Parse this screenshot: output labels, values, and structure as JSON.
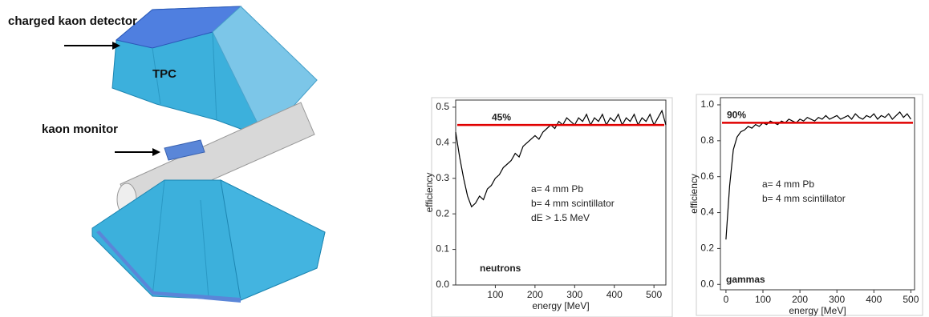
{
  "diagram": {
    "labels": [
      "charged kaon detector",
      "TPC",
      "kaon monitor"
    ]
  },
  "chart_data": [
    {
      "type": "line",
      "xlabel": "energy [MeV]",
      "ylabel": "efficiency",
      "xlim": [
        0,
        530
      ],
      "ylim": [
        0,
        0.52
      ],
      "xticks": [
        100,
        200,
        300,
        400,
        500
      ],
      "yticks": [
        {
          "value": 0,
          "label": "0.0"
        },
        0.1,
        0.2,
        0.3,
        0.4,
        0.5
      ],
      "reference": {
        "value": 0.45,
        "label": "45%",
        "color": "#e00000"
      },
      "annotations": [
        "a= 4 mm Pb",
        "b= 4 mm scintillator",
        "dE > 1.5 MeV",
        "neutrons"
      ],
      "series": [
        {
          "color": "#000000",
          "x": [
            0,
            10,
            20,
            30,
            40,
            50,
            60,
            70,
            80,
            90,
            100,
            110,
            120,
            130,
            140,
            150,
            160,
            170,
            180,
            190,
            200,
            210,
            220,
            230,
            240,
            250,
            260,
            270,
            280,
            290,
            300,
            310,
            320,
            330,
            340,
            350,
            360,
            370,
            380,
            390,
            400,
            410,
            420,
            430,
            440,
            450,
            460,
            470,
            480,
            490,
            500,
            510,
            520,
            530
          ],
          "values": [
            0.43,
            0.36,
            0.3,
            0.25,
            0.22,
            0.23,
            0.25,
            0.24,
            0.27,
            0.28,
            0.3,
            0.31,
            0.33,
            0.34,
            0.35,
            0.37,
            0.36,
            0.39,
            0.4,
            0.41,
            0.42,
            0.41,
            0.43,
            0.44,
            0.45,
            0.44,
            0.46,
            0.45,
            0.47,
            0.46,
            0.45,
            0.47,
            0.46,
            0.48,
            0.45,
            0.47,
            0.46,
            0.48,
            0.45,
            0.47,
            0.46,
            0.48,
            0.45,
            0.47,
            0.46,
            0.48,
            0.45,
            0.47,
            0.46,
            0.48,
            0.45,
            0.47,
            0.49,
            0.45
          ]
        }
      ]
    },
    {
      "type": "line",
      "xlabel": "energy [MeV]",
      "ylabel": "efficiency",
      "xlim": [
        -15,
        510
      ],
      "ylim": [
        -0.03,
        1.04
      ],
      "xticks": [
        0,
        100,
        200,
        300,
        400,
        500
      ],
      "yticks": [
        {
          "value": 0,
          "label": "0.0"
        },
        0.2,
        0.4,
        0.6,
        0.8,
        {
          "value": 1,
          "label": "1.0"
        }
      ],
      "reference": {
        "value": 0.9,
        "label": "90%",
        "color": "#e00000"
      },
      "annotations": [
        "a= 4 mm Pb",
        "b= 4 mm scintillator",
        "gammas"
      ],
      "series": [
        {
          "color": "#000000",
          "x": [
            0,
            10,
            20,
            30,
            40,
            50,
            60,
            70,
            80,
            90,
            100,
            110,
            120,
            130,
            140,
            150,
            160,
            170,
            180,
            190,
            200,
            210,
            220,
            230,
            240,
            250,
            260,
            270,
            280,
            290,
            300,
            310,
            320,
            330,
            340,
            350,
            360,
            370,
            380,
            390,
            400,
            410,
            420,
            430,
            440,
            450,
            460,
            470,
            480,
            490,
            500
          ],
          "values": [
            0.25,
            0.55,
            0.75,
            0.82,
            0.85,
            0.86,
            0.88,
            0.87,
            0.89,
            0.88,
            0.9,
            0.89,
            0.91,
            0.9,
            0.89,
            0.91,
            0.9,
            0.92,
            0.91,
            0.9,
            0.92,
            0.91,
            0.93,
            0.92,
            0.91,
            0.93,
            0.92,
            0.94,
            0.92,
            0.93,
            0.94,
            0.92,
            0.93,
            0.94,
            0.92,
            0.95,
            0.93,
            0.92,
            0.94,
            0.93,
            0.95,
            0.92,
            0.94,
            0.93,
            0.95,
            0.92,
            0.94,
            0.96,
            0.93,
            0.95,
            0.92
          ]
        }
      ]
    }
  ]
}
